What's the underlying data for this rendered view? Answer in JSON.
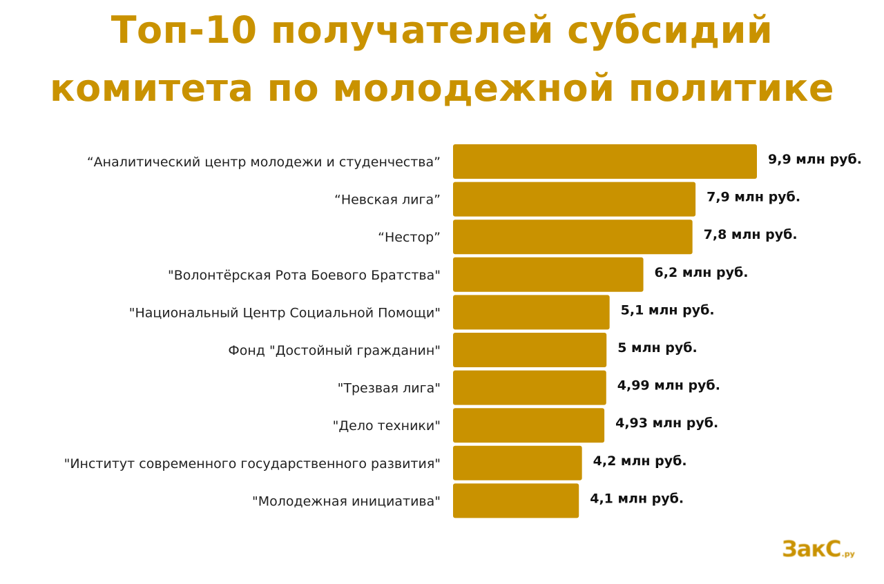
{
  "chart_data": {
    "type": "bar",
    "orientation": "horizontal",
    "title": "Топ-10 получателей субсидий комитета по молодежной политике",
    "title_lines": [
      "Топ-10 получателей субсидий",
      "комитета по молодежной политике"
    ],
    "categories": [
      "“Аналитический центр молодежи и студенчества”",
      "“Невская лига”",
      "“Нестор”",
      "\"Волонтёрская Рота Боевого Братства\"",
      "\"Национальный Центр Социальной Помощи\"",
      "Фонд \"Достойный гражданин\"",
      "\"Трезвая лига\"",
      "\"Дело техники\"",
      "\"Институт современного государственного развития\"",
      "\"Молодежная инициатива\""
    ],
    "values": [
      9.9,
      7.9,
      7.8,
      6.2,
      5.1,
      5.0,
      4.99,
      4.93,
      4.2,
      4.1
    ],
    "data_labels": [
      "9,9 млн руб.",
      "7,9 млн руб.",
      "7,8 млн руб.",
      "6,2 млн руб.",
      "5,1 млн руб.",
      "5 млн руб.",
      "4,99 млн руб.",
      "4,93 млн руб.",
      "4,2 млн руб.",
      "4,1 млн руб."
    ],
    "xlim": [
      0,
      9.9
    ],
    "grid": false,
    "bar_color": "#c99200",
    "title_color": "#c99200"
  },
  "logo": {
    "main": "ЗакС",
    "domain": ".ру"
  }
}
